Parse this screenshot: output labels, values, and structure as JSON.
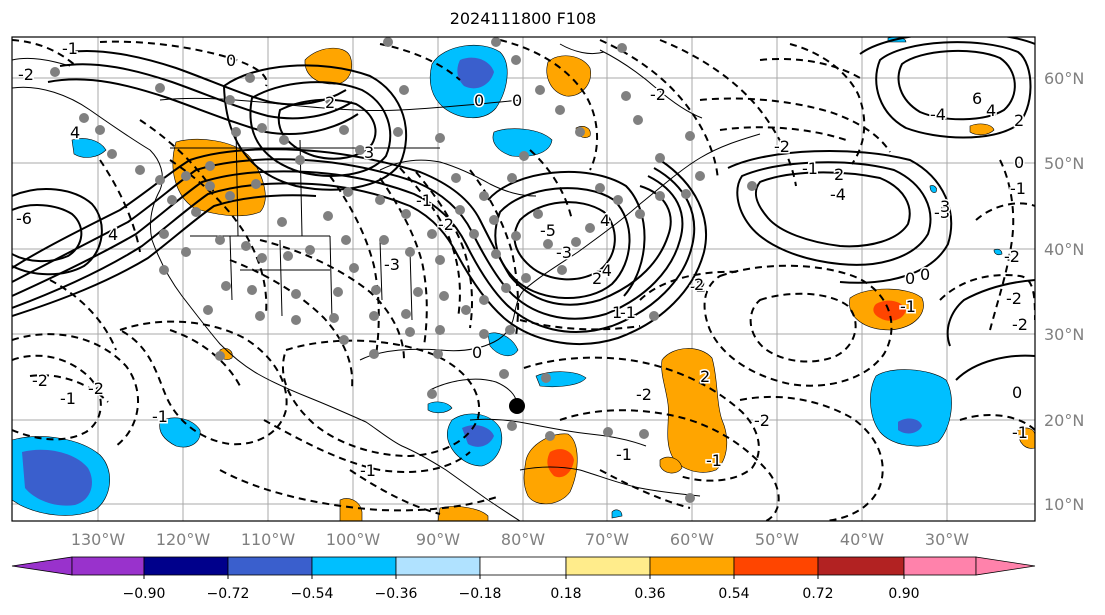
{
  "title": "2024111800 F108",
  "lon_labels": [
    "130°W",
    "120°W",
    "110°W",
    "100°W",
    "90°W",
    "80°W",
    "70°W",
    "60°W",
    "50°W",
    "40°W",
    "30°W"
  ],
  "lat_labels": [
    "60°N",
    "50°N",
    "40°N",
    "30°N",
    "20°N",
    "10°N"
  ],
  "colorbar": {
    "tick_labels": [
      "−0.90",
      "−0.72",
      "−0.54",
      "−0.36",
      "−0.18",
      "0.18",
      "0.36",
      "0.54",
      "0.72",
      "0.90"
    ],
    "colors": [
      "#9932cc",
      "#00008b",
      "#3a5fcd",
      "#00bfff",
      "#b0e2ff",
      "#ffffff",
      "#ffec8b",
      "#ffa500",
      "#ff4500",
      "#b22222",
      "#ff82ab"
    ]
  },
  "contour_labels": [
    "-1",
    "0",
    "2",
    "-6",
    "0",
    "0",
    "4",
    "-2",
    "3",
    "-1",
    "-2",
    "-3",
    "-2",
    "4",
    "-3",
    "-5",
    "-4",
    "-1",
    "-2",
    "-2",
    "-1",
    "2",
    "-4",
    "4",
    "6",
    "-3",
    "2",
    "-1",
    "0",
    "-2",
    "-4",
    "4",
    "3",
    "1",
    "2",
    "0",
    "-1",
    "-2",
    "-2",
    "0",
    "-1",
    "-2",
    "-1",
    "2",
    "-2",
    "0",
    "-1",
    "-2",
    "-1",
    "-2",
    "-1",
    "-1",
    "0",
    "2"
  ]
}
